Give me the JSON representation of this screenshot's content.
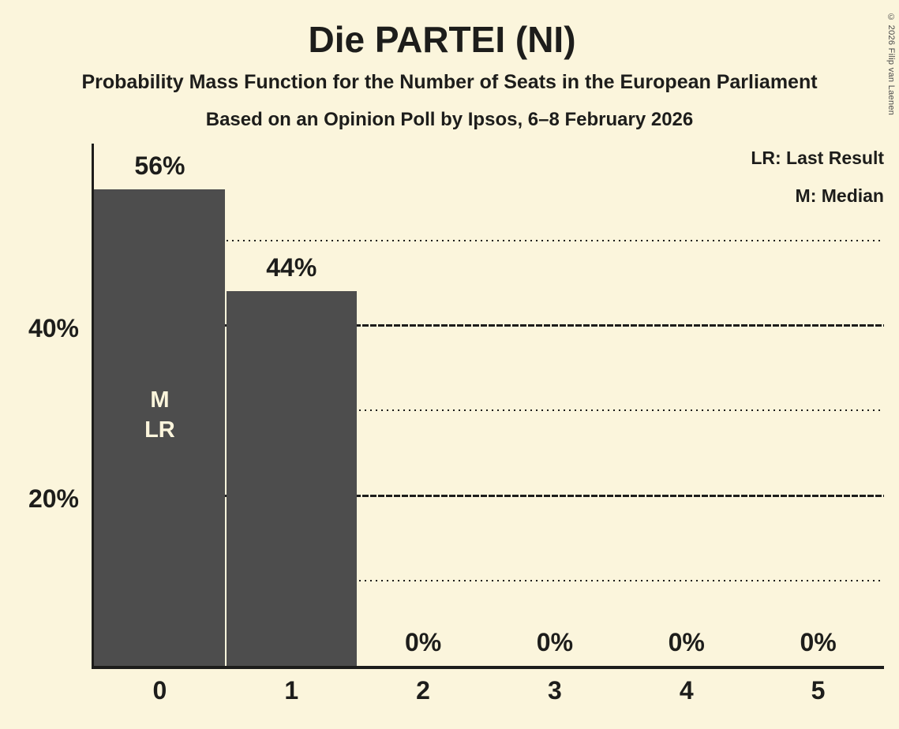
{
  "page": {
    "background_color": "#fbf5dc",
    "copyright_notice": "© 2026 Filip van Laenen"
  },
  "chart_data": {
    "type": "bar",
    "title": "Die PARTEI (NI)",
    "subtitle": "Probability Mass Function for the Number of Seats in the European Parliament",
    "source_line": "Based on an Opinion Poll by Ipsos, 6–8 February 2026",
    "xlabel": "",
    "ylabel": "",
    "categories": [
      "0",
      "1",
      "2",
      "3",
      "4",
      "5"
    ],
    "values": [
      56,
      44,
      0,
      0,
      0,
      0
    ],
    "bar_labels": [
      "56%",
      "44%",
      "0%",
      "0%",
      "0%",
      "0%"
    ],
    "ylim": [
      0,
      61
    ],
    "yticks": [
      {
        "value": 40,
        "label": "40%"
      },
      {
        "value": 20,
        "label": "20%"
      }
    ],
    "gridlines": [
      {
        "value": 50,
        "style": "dotted"
      },
      {
        "value": 40,
        "style": "dashed"
      },
      {
        "value": 30,
        "style": "dotted"
      },
      {
        "value": 20,
        "style": "dashed"
      },
      {
        "value": 10,
        "style": "dotted"
      }
    ],
    "annotations": [
      {
        "bar_index": 0,
        "lines": [
          "M",
          "LR"
        ]
      }
    ],
    "legend": {
      "position": "top-right",
      "items": [
        {
          "label": "LR: Last Result"
        },
        {
          "label": "M: Median"
        }
      ]
    },
    "grid": "horizontal-only",
    "colors": {
      "bar": "#4d4d4d",
      "background": "#fbf5dc",
      "text": "#1d1d1b",
      "bar_annotation_text": "#fbf5dc"
    }
  }
}
